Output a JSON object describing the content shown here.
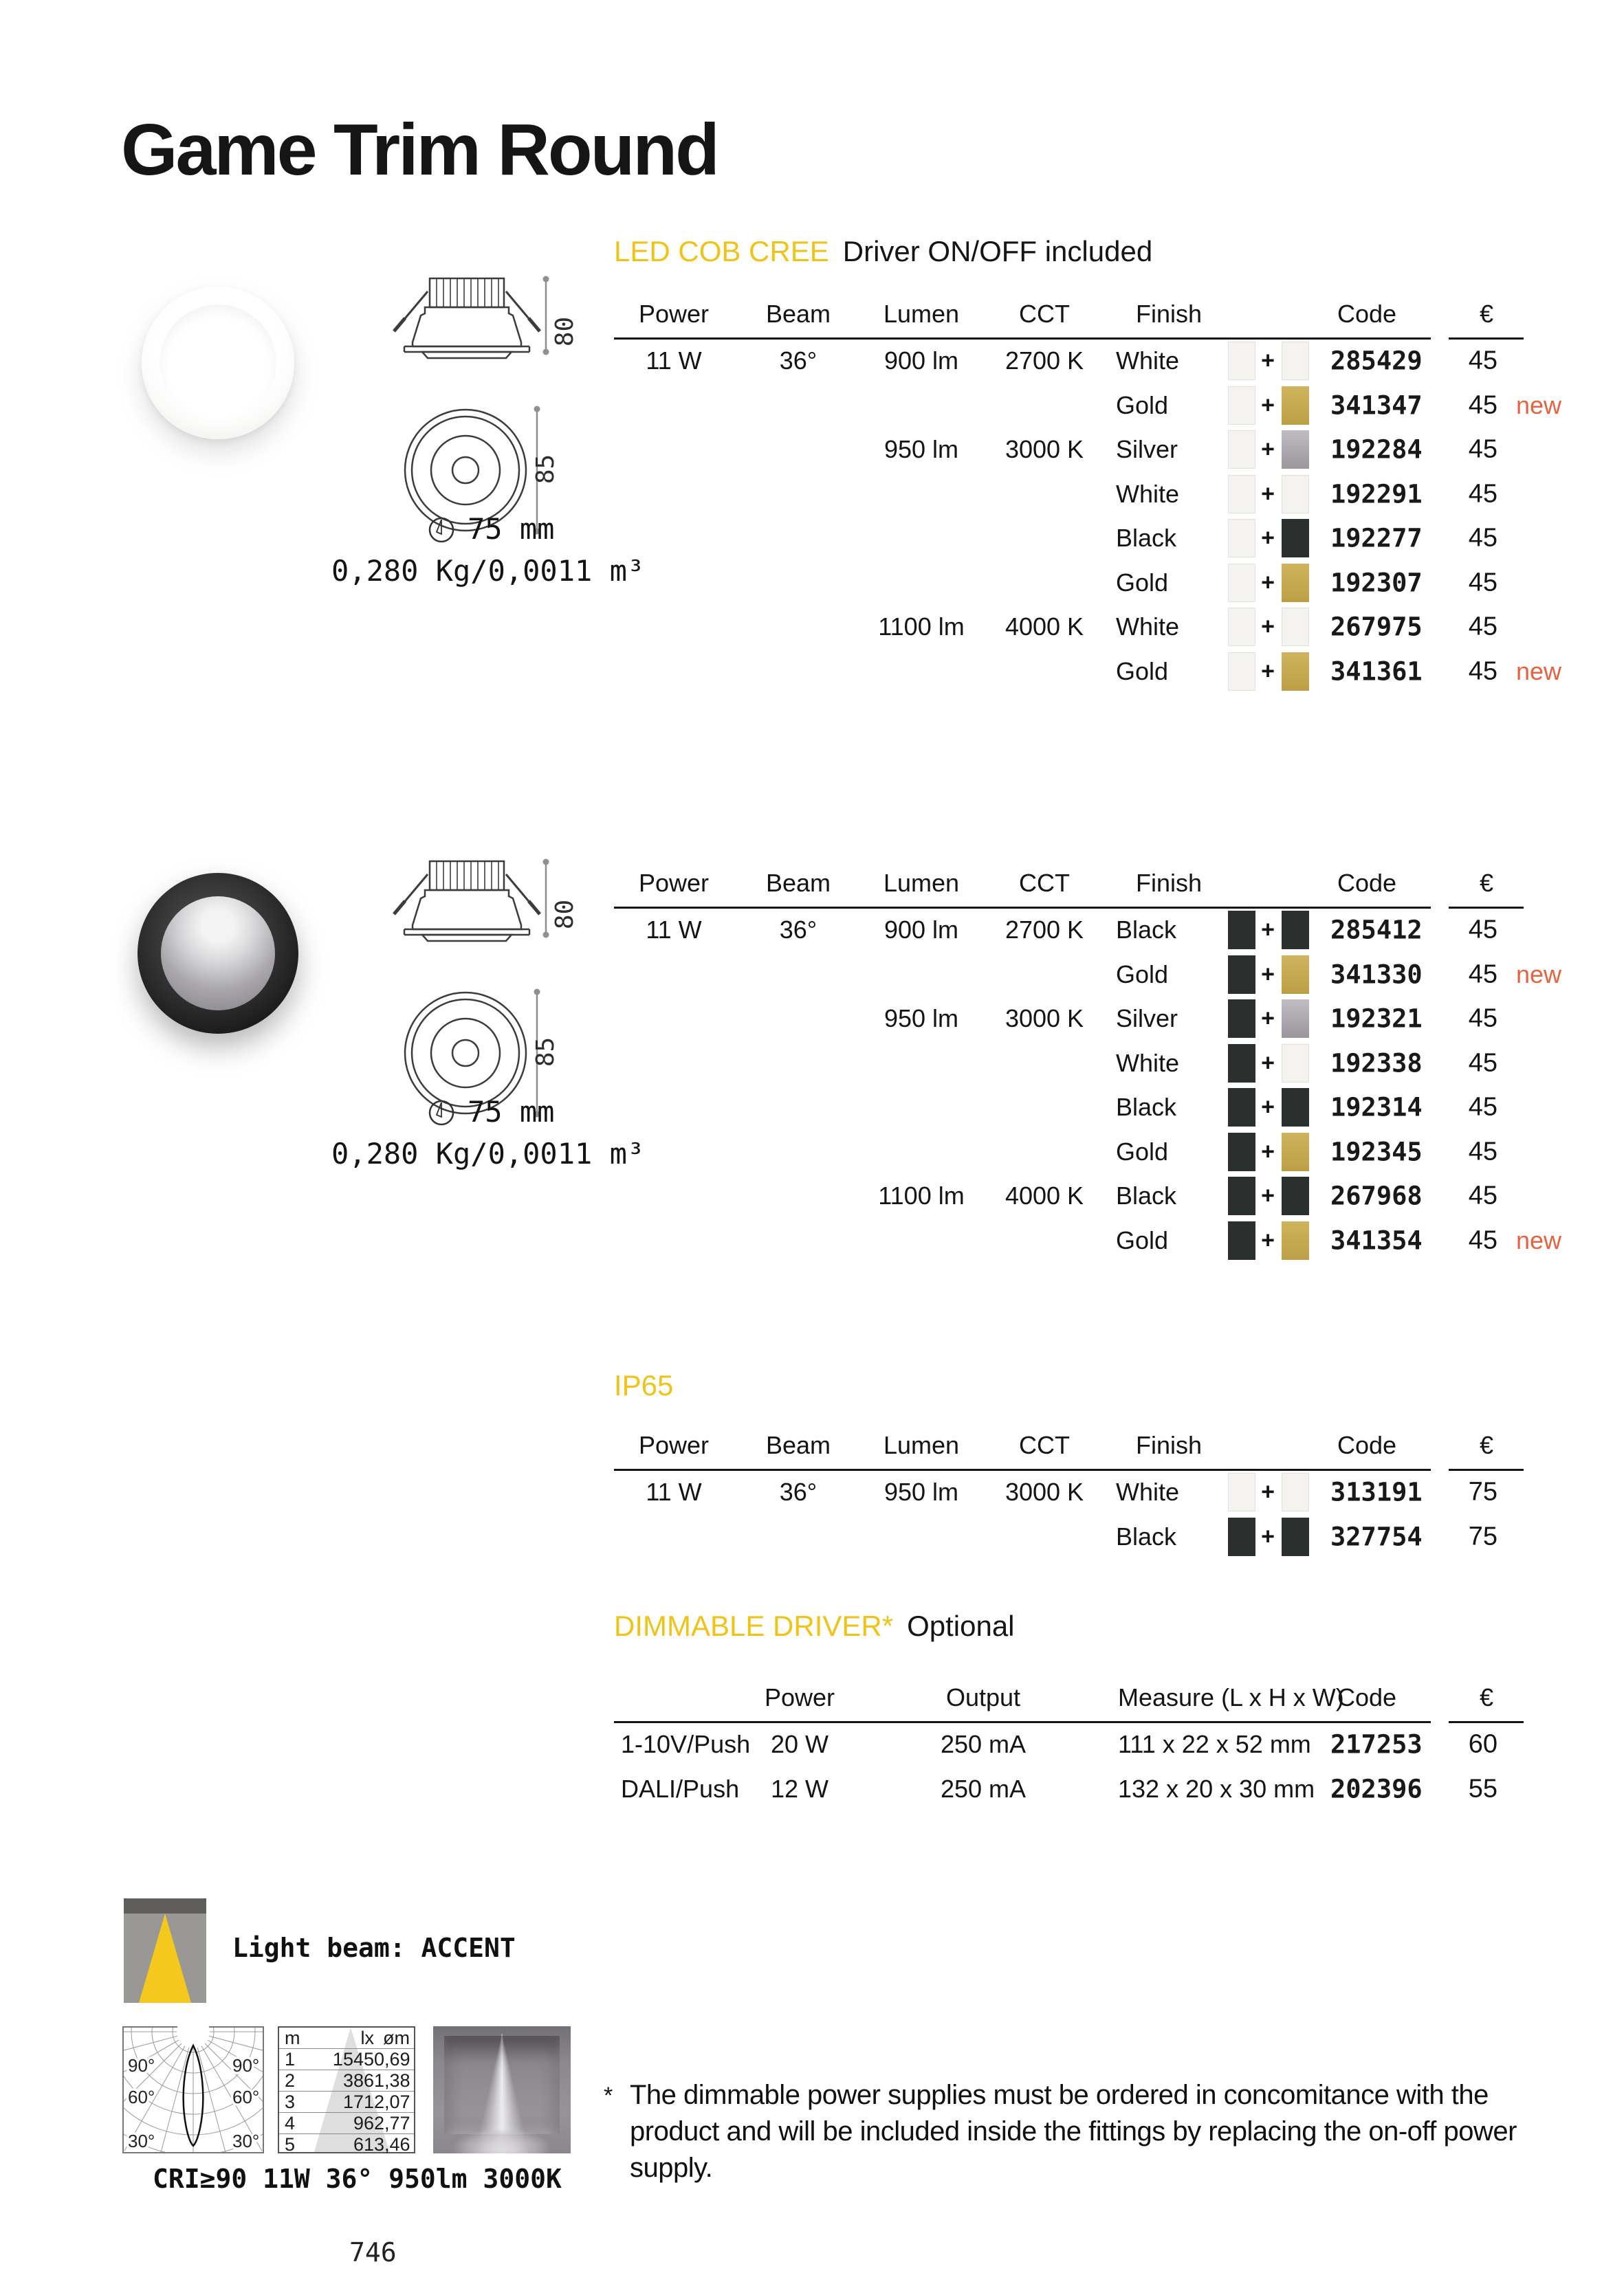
{
  "title": "Game Trim Round",
  "page_number": "746",
  "colors": {
    "yellow": "#F0C319",
    "new_flag": "#E86140",
    "swatch_white": "#F4F3EF",
    "swatch_black": "#2B302E",
    "swatch_gold": "linear-gradient(180deg,#CFB35E,#BC9F45)",
    "swatch_silver": "linear-gradient(180deg,#BFBCC2,#9A969C)"
  },
  "products": [
    {
      "section_label": "LED COB CREE",
      "section_suffix": "Driver ON/OFF included",
      "finish_photo": "white",
      "dims": {
        "height": "80",
        "diameter": "85",
        "hole": "75 mm",
        "weight": "0,280 Kg/0,0011 m³"
      },
      "columns": [
        "Power",
        "Beam",
        "Lumen",
        "CCT",
        "Finish",
        "Code",
        "€"
      ],
      "rows": [
        {
          "power": "11 W",
          "beam": "36°",
          "lumen": "900 lm",
          "cct": "2700 K",
          "finish": "White",
          "swatches": [
            "white",
            "white"
          ],
          "code": "285429",
          "price": "45",
          "new": false
        },
        {
          "finish": "Gold",
          "swatches": [
            "white",
            "gold"
          ],
          "code": "341347",
          "price": "45",
          "new": true
        },
        {
          "lumen": "950 lm",
          "cct": "3000 K",
          "finish": "Silver",
          "swatches": [
            "white",
            "silver"
          ],
          "code": "192284",
          "price": "45",
          "new": false
        },
        {
          "finish": "White",
          "swatches": [
            "white",
            "white"
          ],
          "code": "192291",
          "price": "45",
          "new": false
        },
        {
          "finish": "Black",
          "swatches": [
            "white",
            "black"
          ],
          "code": "192277",
          "price": "45",
          "new": false
        },
        {
          "finish": "Gold",
          "swatches": [
            "white",
            "gold"
          ],
          "code": "192307",
          "price": "45",
          "new": false
        },
        {
          "lumen": "1100 lm",
          "cct": "4000 K",
          "finish": "White",
          "swatches": [
            "white",
            "white"
          ],
          "code": "267975",
          "price": "45",
          "new": false
        },
        {
          "finish": "Gold",
          "swatches": [
            "white",
            "gold"
          ],
          "code": "341361",
          "price": "45",
          "new": true
        }
      ]
    },
    {
      "section_label": null,
      "section_suffix": null,
      "finish_photo": "black",
      "dims": {
        "height": "80",
        "diameter": "85",
        "hole": "75 mm",
        "weight": "0,280 Kg/0,0011 m³"
      },
      "columns": [
        "Power",
        "Beam",
        "Lumen",
        "CCT",
        "Finish",
        "Code",
        "€"
      ],
      "rows": [
        {
          "power": "11 W",
          "beam": "36°",
          "lumen": "900 lm",
          "cct": "2700 K",
          "finish": "Black",
          "swatches": [
            "black",
            "black"
          ],
          "code": "285412",
          "price": "45",
          "new": false
        },
        {
          "finish": "Gold",
          "swatches": [
            "black",
            "gold"
          ],
          "code": "341330",
          "price": "45",
          "new": true
        },
        {
          "lumen": "950 lm",
          "cct": "3000 K",
          "finish": "Silver",
          "swatches": [
            "black",
            "silver"
          ],
          "code": "192321",
          "price": "45",
          "new": false
        },
        {
          "finish": "White",
          "swatches": [
            "black",
            "white"
          ],
          "code": "192338",
          "price": "45",
          "new": false
        },
        {
          "finish": "Black",
          "swatches": [
            "black",
            "black"
          ],
          "code": "192314",
          "price": "45",
          "new": false
        },
        {
          "finish": "Gold",
          "swatches": [
            "black",
            "gold"
          ],
          "code": "192345",
          "price": "45",
          "new": false
        },
        {
          "lumen": "1100 lm",
          "cct": "4000 K",
          "finish": "Black",
          "swatches": [
            "black",
            "black"
          ],
          "code": "267968",
          "price": "45",
          "new": false
        },
        {
          "finish": "Gold",
          "swatches": [
            "black",
            "gold"
          ],
          "code": "341354",
          "price": "45",
          "new": true
        }
      ]
    }
  ],
  "ip65": {
    "label": "IP65",
    "columns": [
      "Power",
      "Beam",
      "Lumen",
      "CCT",
      "Finish",
      "Code",
      "€"
    ],
    "rows": [
      {
        "power": "11 W",
        "beam": "36°",
        "lumen": "950 lm",
        "cct": "3000 K",
        "finish": "White",
        "swatches": [
          "white",
          "white"
        ],
        "code": "313191",
        "price": "75",
        "new": false
      },
      {
        "finish": "Black",
        "swatches": [
          "black",
          "black"
        ],
        "code": "327754",
        "price": "75",
        "new": false
      }
    ]
  },
  "driver": {
    "label": "DIMMABLE DRIVER*",
    "suffix": "Optional",
    "columns": [
      "Power",
      "Output",
      "Measure (L x H x W)",
      "Code",
      "€"
    ],
    "rows": [
      {
        "type": "1-10V/Push",
        "power": "20 W",
        "output": "250 mA",
        "measure": "111 x 22 x 52 mm",
        "code": "217253",
        "price": "60"
      },
      {
        "type": "DALI/Push",
        "power": "12 W",
        "output": "250 mA",
        "measure": "132 x 20 x 30 mm",
        "code": "202396",
        "price": "55"
      }
    ]
  },
  "beam": {
    "label": "Light beam: ACCENT",
    "caption": "CRI≥90 11W 36° 950lm 3000K",
    "polar_labels": [
      "90°",
      "60°",
      "30°"
    ],
    "table": {
      "headers": [
        "m",
        "lx",
        "øm"
      ],
      "rows": [
        [
          "1",
          "1545",
          "0,69"
        ],
        [
          "2",
          "386",
          "1,38"
        ],
        [
          "3",
          "171",
          "2,07"
        ],
        [
          "4",
          "96",
          "2,77"
        ],
        [
          "5",
          "61",
          "3,46"
        ]
      ]
    }
  },
  "footnote": {
    "marker": "*",
    "lines": [
      "The dimmable power supplies must be ordered in concomitance with the",
      "product and will be included inside the fittings by replacing the on-off power",
      "supply."
    ]
  }
}
